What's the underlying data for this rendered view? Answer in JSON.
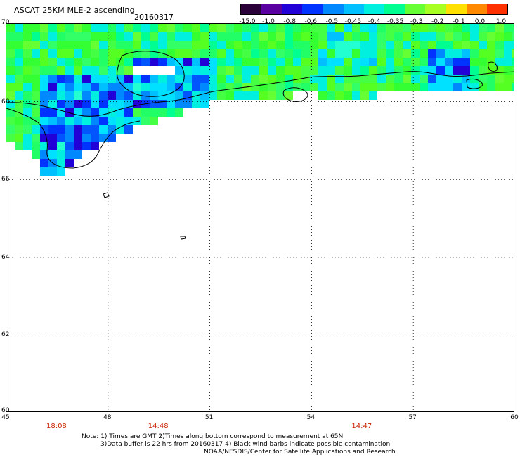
{
  "header": {
    "title": "ASCAT 25KM MLE-2 ascending",
    "date": "20160317"
  },
  "colorbar": {
    "ticks": [
      "-15.0",
      "-1.0",
      "-0.8",
      "-0.6",
      "-0.5",
      "-0.45",
      "-0.4",
      "-0.35",
      "-0.3",
      "-0.2",
      "-0.1",
      "0.0",
      "1.0"
    ],
    "colors": [
      "#2a0038",
      "#5a00a0",
      "#2200d8",
      "#0033ff",
      "#0088ff",
      "#00c0ff",
      "#00f0e0",
      "#00ff90",
      "#66ff33",
      "#a8ff22",
      "#ffe000",
      "#ff8800",
      "#ff3000"
    ]
  },
  "axes": {
    "latitude_labels": [
      "70",
      "68",
      "66",
      "64",
      "62",
      "60"
    ],
    "longitude_labels": [
      "45",
      "48",
      "51",
      "54",
      "57",
      "60"
    ],
    "lat_range": [
      60,
      70
    ],
    "lon_range": [
      45,
      60
    ],
    "gridlines": "dotted"
  },
  "pass_times": [
    "18:08",
    "14:48",
    "14:47"
  ],
  "colors": {
    "time_text": "#cc2200",
    "land_outline": "#000000",
    "background": "#ffffff"
  },
  "footer": {
    "line1": "Note: 1) Times are GMT 2)Times along bottom correspond to measurement at 65N",
    "line2": "3)Data buffer is 22 hrs from 20160317 4) Black wind barbs indicate possible contamination",
    "line3": "NOAA/NESDIS/Center for Satellite Applications and Research"
  }
}
